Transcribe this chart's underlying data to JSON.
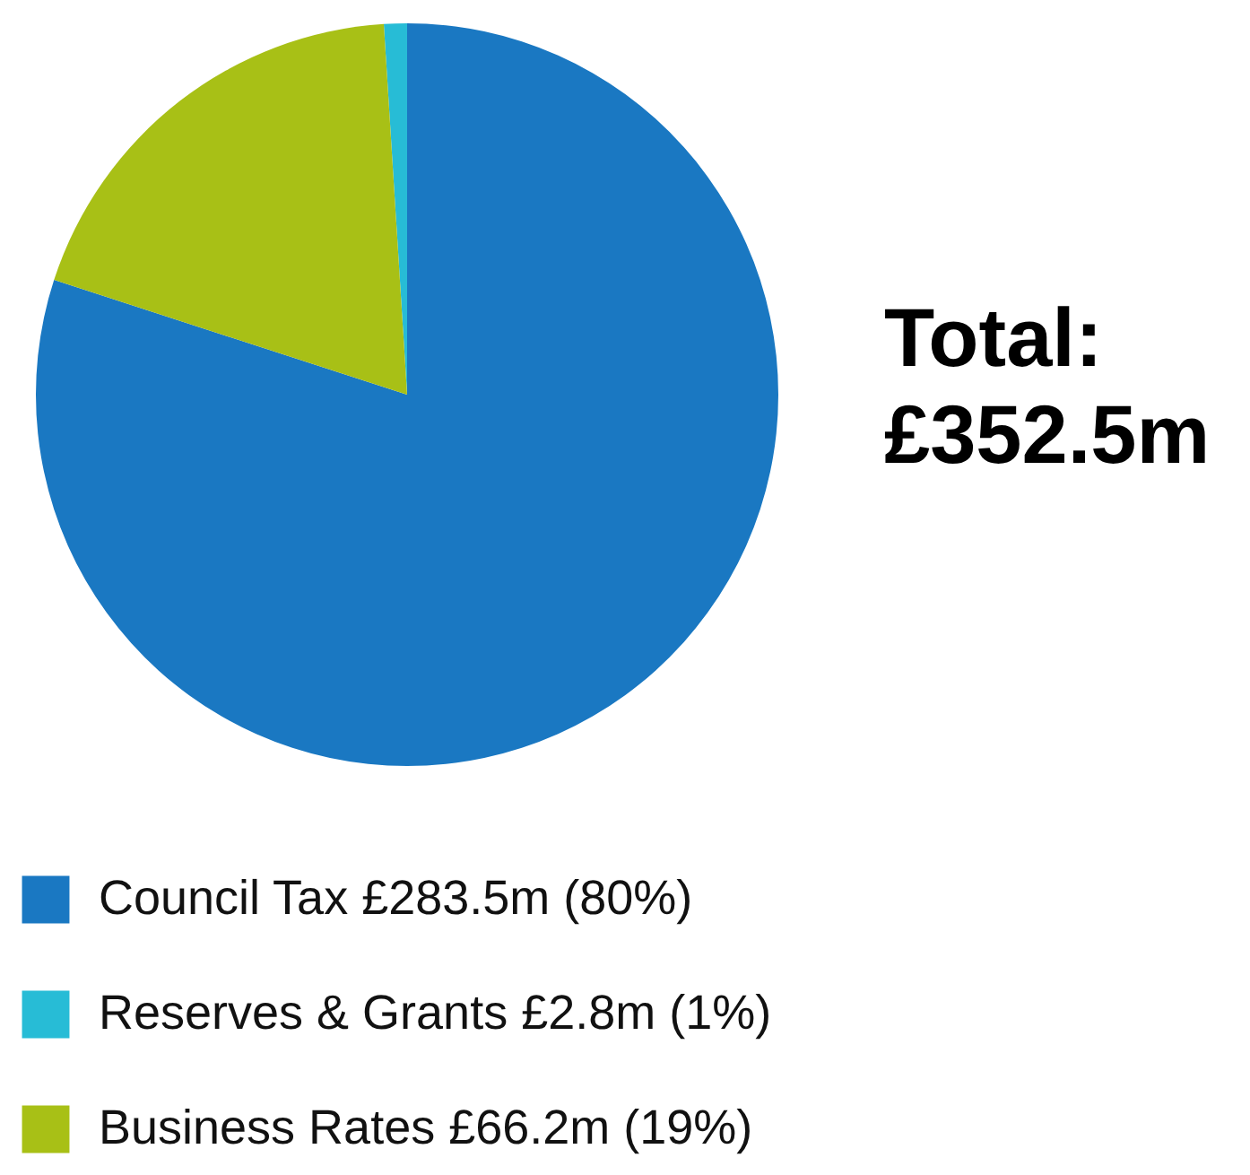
{
  "chart_data": {
    "type": "pie",
    "categories": [
      "Council Tax £283.5m (80%)",
      "Reserves & Grants £2.8m (1%)",
      "Business Rates £66.2m (19%)"
    ],
    "values": [
      80,
      1,
      19
    ],
    "colors": [
      "#1a78c2",
      "#27bcd6",
      "#a8c016"
    ],
    "annotations": [
      "Total: £352.5m"
    ],
    "legend": "bottom left"
  }
}
